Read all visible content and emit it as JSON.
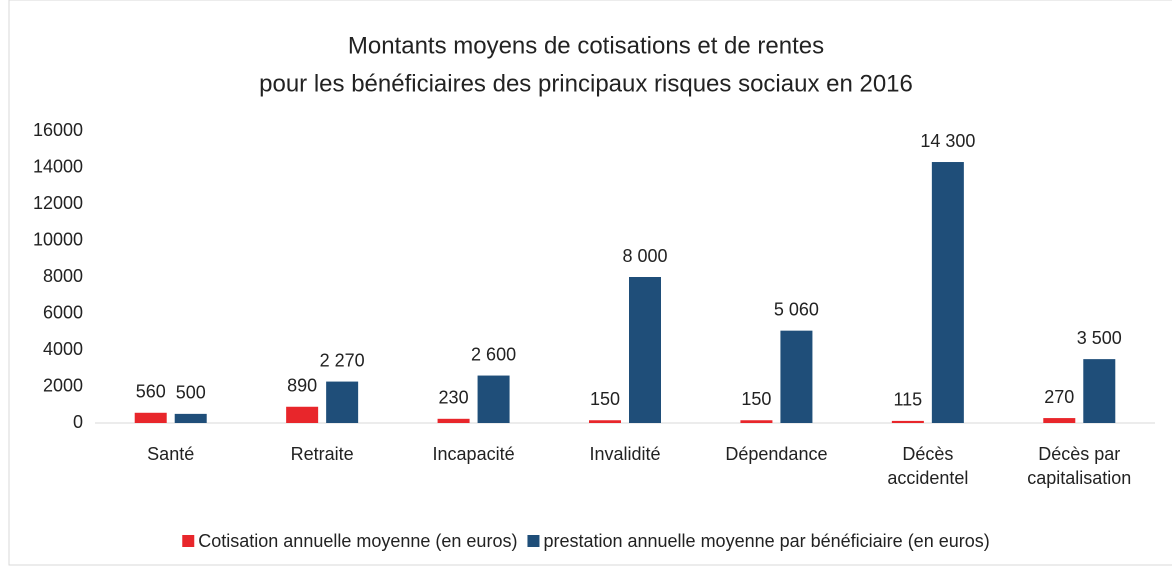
{
  "chart_data": {
    "type": "bar",
    "title": [
      "Montants moyens de cotisations et de rentes",
      "pour les bénéficiaires des principaux risques sociaux en 2016"
    ],
    "categories": [
      "Santé",
      "Retraite",
      "Incapacité",
      "Invalidité",
      "Dépendance",
      "Décès accidentel",
      "Décès par capitalisation"
    ],
    "series": [
      {
        "name": "Cotisation annuelle moyenne (en euros)",
        "color": "#e8262b",
        "values": [
          560,
          890,
          230,
          150,
          150,
          115,
          270
        ],
        "value_labels": [
          "560",
          "890",
          "230",
          "150",
          "150",
          "115",
          "270"
        ]
      },
      {
        "name": "prestation annuelle moyenne par bénéficiaire (en euros)",
        "color": "#1f4e79",
        "values": [
          500,
          2270,
          2600,
          8000,
          5060,
          14300,
          3500
        ],
        "value_labels": [
          "500",
          "2 270",
          "2 600",
          "8 000",
          "5 060",
          "14 300",
          "3 500"
        ]
      }
    ],
    "ylim": [
      0,
      16000
    ],
    "yticks": [
      0,
      2000,
      4000,
      6000,
      8000,
      10000,
      12000,
      14000,
      16000
    ],
    "grid": false,
    "legend": "bottom"
  }
}
